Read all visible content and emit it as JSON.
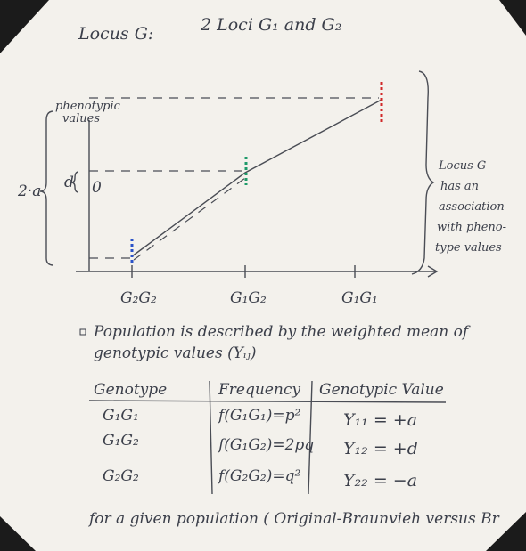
{
  "header": {
    "title": "Locus G:",
    "subtitle": "2 Loci G₁ and G₂"
  },
  "sketch": {
    "y_label": [
      "phenotypic",
      "values"
    ],
    "left_brace_label": "2·a",
    "d_label": "d",
    "zero_label": "0",
    "x_labels": [
      "G₂G₂",
      "G₁G₂",
      "G₁G₁"
    ],
    "side_note": [
      "Locus G",
      "has an",
      "association",
      "with pheno-",
      "type values"
    ]
  },
  "bullet": [
    "Population is described by the weighted mean of",
    "genotypic values (Yᵢⱼ)"
  ],
  "table": {
    "headers": [
      "Genotype",
      "Frequency",
      "Genotypic Value"
    ],
    "rows": [
      [
        "G₁G₁",
        "f(G₁G₁)=p²",
        "Y₁₁ = +a"
      ],
      [
        "G₁G₂",
        "f(G₁G₂)=2pq",
        "Y₁₂ = +d"
      ],
      [
        "G₂G₂",
        "f(G₂G₂)=q²",
        "Y₂₂ = −a"
      ]
    ]
  },
  "footer": "for a given population ( Original-Braunvieh versus Br"
}
